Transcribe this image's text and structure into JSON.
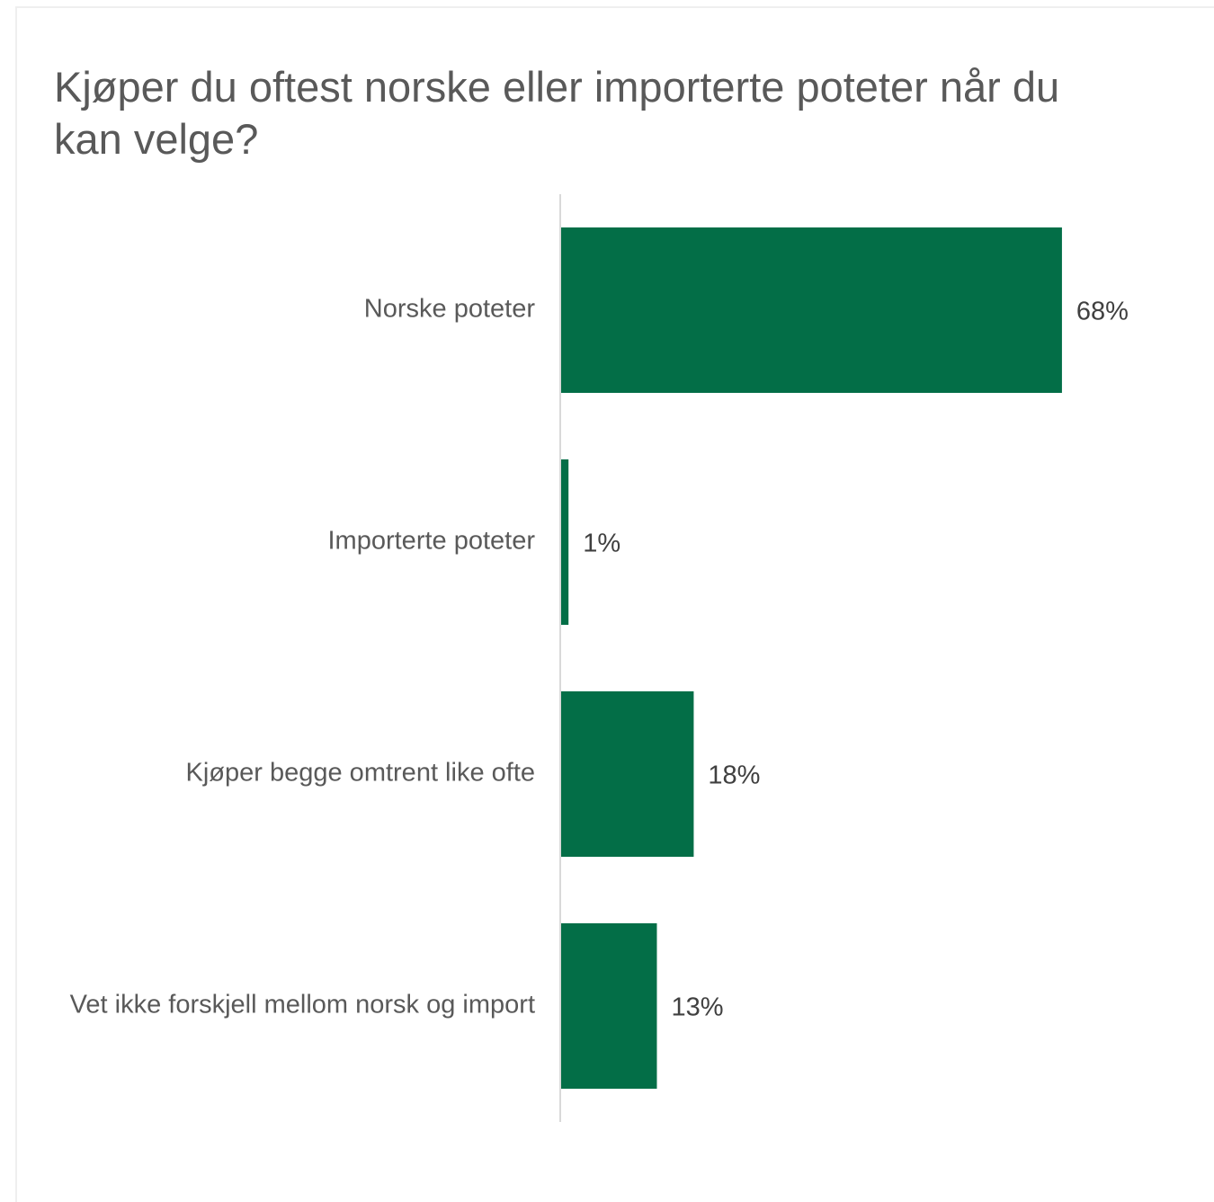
{
  "colors": {
    "bar": "#036E47",
    "axis": "#d9d9d9"
  },
  "chart_data": {
    "type": "bar",
    "orientation": "horizontal",
    "title": "Kjøper du oftest norske eller importerte poteter når du kan velge?",
    "categories": [
      "Norske poteter",
      "Importerte poteter",
      "Kjøper begge omtrent like ofte",
      "Vet ikke forskjell mellom norsk og import"
    ],
    "values": [
      68,
      1,
      18,
      13
    ],
    "value_labels": [
      "68%",
      "1%",
      "18%",
      "13%"
    ],
    "unit": "%",
    "xlim": [
      0,
      100
    ],
    "grid": false,
    "legend": "none"
  }
}
